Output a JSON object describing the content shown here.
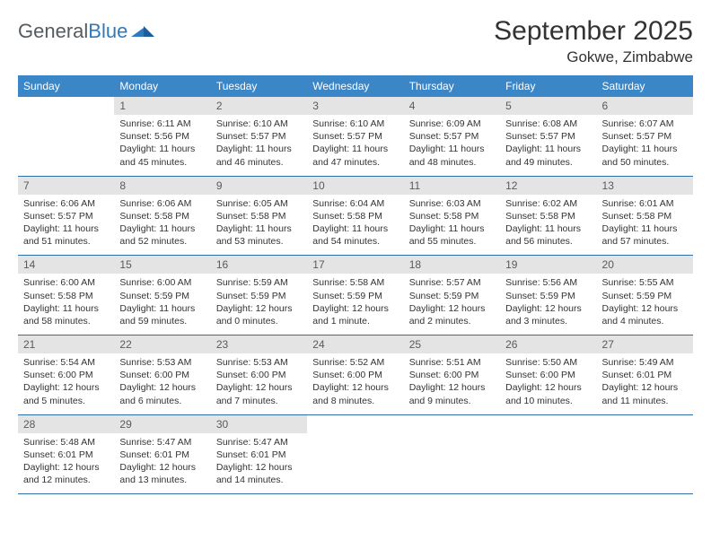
{
  "logo": {
    "word1": "General",
    "word2": "Blue"
  },
  "header": {
    "month_title": "September 2025",
    "location": "Gokwe, Zimbabwe"
  },
  "colors": {
    "header_bg": "#3b86c7",
    "header_text": "#ffffff",
    "daynum_bg": "#e4e4e4",
    "daynum_text": "#5a5a5a",
    "body_text": "#333333",
    "row_border": "#2f6ea8",
    "logo_gray": "#555b60",
    "logo_blue": "#2f79bd"
  },
  "dow": [
    "Sunday",
    "Monday",
    "Tuesday",
    "Wednesday",
    "Thursday",
    "Friday",
    "Saturday"
  ],
  "weeks": [
    [
      {
        "n": "",
        "sr": "",
        "ss": "",
        "dl": ""
      },
      {
        "n": "1",
        "sr": "Sunrise: 6:11 AM",
        "ss": "Sunset: 5:56 PM",
        "dl": "Daylight: 11 hours and 45 minutes."
      },
      {
        "n": "2",
        "sr": "Sunrise: 6:10 AM",
        "ss": "Sunset: 5:57 PM",
        "dl": "Daylight: 11 hours and 46 minutes."
      },
      {
        "n": "3",
        "sr": "Sunrise: 6:10 AM",
        "ss": "Sunset: 5:57 PM",
        "dl": "Daylight: 11 hours and 47 minutes."
      },
      {
        "n": "4",
        "sr": "Sunrise: 6:09 AM",
        "ss": "Sunset: 5:57 PM",
        "dl": "Daylight: 11 hours and 48 minutes."
      },
      {
        "n": "5",
        "sr": "Sunrise: 6:08 AM",
        "ss": "Sunset: 5:57 PM",
        "dl": "Daylight: 11 hours and 49 minutes."
      },
      {
        "n": "6",
        "sr": "Sunrise: 6:07 AM",
        "ss": "Sunset: 5:57 PM",
        "dl": "Daylight: 11 hours and 50 minutes."
      }
    ],
    [
      {
        "n": "7",
        "sr": "Sunrise: 6:06 AM",
        "ss": "Sunset: 5:57 PM",
        "dl": "Daylight: 11 hours and 51 minutes."
      },
      {
        "n": "8",
        "sr": "Sunrise: 6:06 AM",
        "ss": "Sunset: 5:58 PM",
        "dl": "Daylight: 11 hours and 52 minutes."
      },
      {
        "n": "9",
        "sr": "Sunrise: 6:05 AM",
        "ss": "Sunset: 5:58 PM",
        "dl": "Daylight: 11 hours and 53 minutes."
      },
      {
        "n": "10",
        "sr": "Sunrise: 6:04 AM",
        "ss": "Sunset: 5:58 PM",
        "dl": "Daylight: 11 hours and 54 minutes."
      },
      {
        "n": "11",
        "sr": "Sunrise: 6:03 AM",
        "ss": "Sunset: 5:58 PM",
        "dl": "Daylight: 11 hours and 55 minutes."
      },
      {
        "n": "12",
        "sr": "Sunrise: 6:02 AM",
        "ss": "Sunset: 5:58 PM",
        "dl": "Daylight: 11 hours and 56 minutes."
      },
      {
        "n": "13",
        "sr": "Sunrise: 6:01 AM",
        "ss": "Sunset: 5:58 PM",
        "dl": "Daylight: 11 hours and 57 minutes."
      }
    ],
    [
      {
        "n": "14",
        "sr": "Sunrise: 6:00 AM",
        "ss": "Sunset: 5:58 PM",
        "dl": "Daylight: 11 hours and 58 minutes."
      },
      {
        "n": "15",
        "sr": "Sunrise: 6:00 AM",
        "ss": "Sunset: 5:59 PM",
        "dl": "Daylight: 11 hours and 59 minutes."
      },
      {
        "n": "16",
        "sr": "Sunrise: 5:59 AM",
        "ss": "Sunset: 5:59 PM",
        "dl": "Daylight: 12 hours and 0 minutes."
      },
      {
        "n": "17",
        "sr": "Sunrise: 5:58 AM",
        "ss": "Sunset: 5:59 PM",
        "dl": "Daylight: 12 hours and 1 minute."
      },
      {
        "n": "18",
        "sr": "Sunrise: 5:57 AM",
        "ss": "Sunset: 5:59 PM",
        "dl": "Daylight: 12 hours and 2 minutes."
      },
      {
        "n": "19",
        "sr": "Sunrise: 5:56 AM",
        "ss": "Sunset: 5:59 PM",
        "dl": "Daylight: 12 hours and 3 minutes."
      },
      {
        "n": "20",
        "sr": "Sunrise: 5:55 AM",
        "ss": "Sunset: 5:59 PM",
        "dl": "Daylight: 12 hours and 4 minutes."
      }
    ],
    [
      {
        "n": "21",
        "sr": "Sunrise: 5:54 AM",
        "ss": "Sunset: 6:00 PM",
        "dl": "Daylight: 12 hours and 5 minutes."
      },
      {
        "n": "22",
        "sr": "Sunrise: 5:53 AM",
        "ss": "Sunset: 6:00 PM",
        "dl": "Daylight: 12 hours and 6 minutes."
      },
      {
        "n": "23",
        "sr": "Sunrise: 5:53 AM",
        "ss": "Sunset: 6:00 PM",
        "dl": "Daylight: 12 hours and 7 minutes."
      },
      {
        "n": "24",
        "sr": "Sunrise: 5:52 AM",
        "ss": "Sunset: 6:00 PM",
        "dl": "Daylight: 12 hours and 8 minutes."
      },
      {
        "n": "25",
        "sr": "Sunrise: 5:51 AM",
        "ss": "Sunset: 6:00 PM",
        "dl": "Daylight: 12 hours and 9 minutes."
      },
      {
        "n": "26",
        "sr": "Sunrise: 5:50 AM",
        "ss": "Sunset: 6:00 PM",
        "dl": "Daylight: 12 hours and 10 minutes."
      },
      {
        "n": "27",
        "sr": "Sunrise: 5:49 AM",
        "ss": "Sunset: 6:01 PM",
        "dl": "Daylight: 12 hours and 11 minutes."
      }
    ],
    [
      {
        "n": "28",
        "sr": "Sunrise: 5:48 AM",
        "ss": "Sunset: 6:01 PM",
        "dl": "Daylight: 12 hours and 12 minutes."
      },
      {
        "n": "29",
        "sr": "Sunrise: 5:47 AM",
        "ss": "Sunset: 6:01 PM",
        "dl": "Daylight: 12 hours and 13 minutes."
      },
      {
        "n": "30",
        "sr": "Sunrise: 5:47 AM",
        "ss": "Sunset: 6:01 PM",
        "dl": "Daylight: 12 hours and 14 minutes."
      },
      {
        "n": "",
        "sr": "",
        "ss": "",
        "dl": ""
      },
      {
        "n": "",
        "sr": "",
        "ss": "",
        "dl": ""
      },
      {
        "n": "",
        "sr": "",
        "ss": "",
        "dl": ""
      },
      {
        "n": "",
        "sr": "",
        "ss": "",
        "dl": ""
      }
    ]
  ]
}
